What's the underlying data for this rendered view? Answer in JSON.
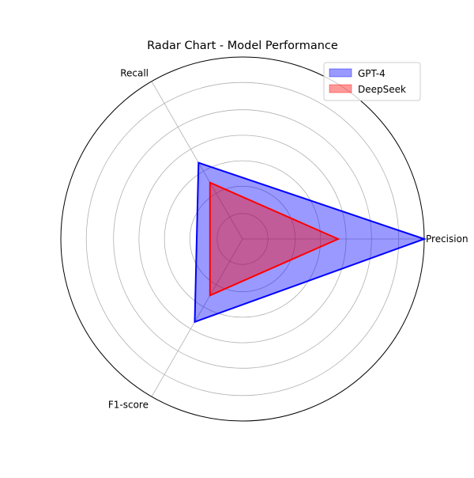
{
  "chart_data": {
    "type": "radar",
    "title": "Radar Chart - Model Performance",
    "axes": [
      "Precision",
      "Recall",
      "F1-score"
    ],
    "rlim": [
      0,
      0.95
    ],
    "grid": true,
    "legend_position": "top-right",
    "series": [
      {
        "name": "GPT-4",
        "values": [
          0.95,
          0.46,
          0.5
        ],
        "color": "#0000ff"
      },
      {
        "name": "DeepSeek",
        "values": [
          0.5,
          0.34,
          0.34
        ],
        "color": "#ff0000"
      }
    ]
  }
}
